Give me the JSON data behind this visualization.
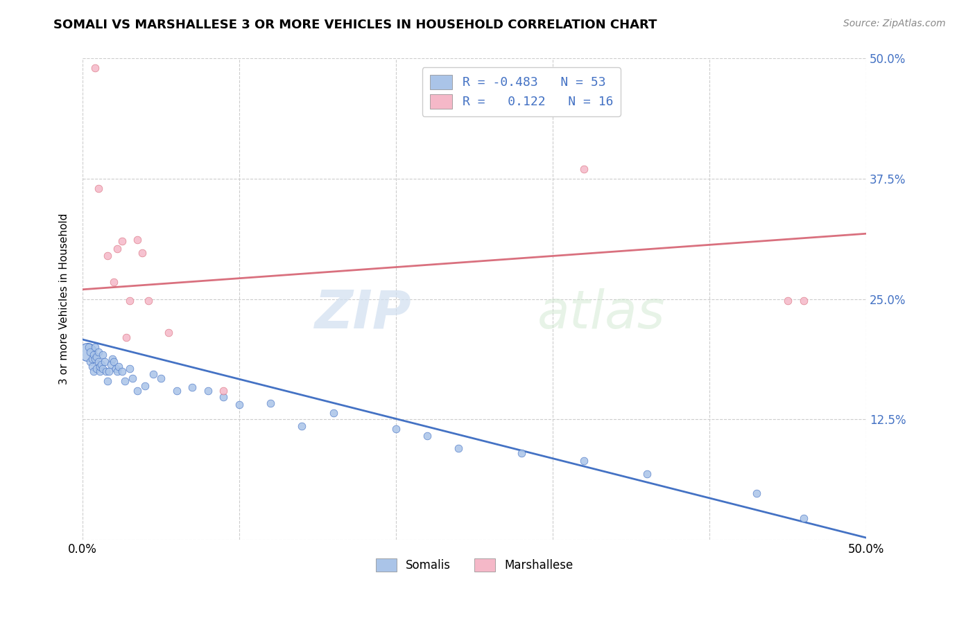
{
  "title": "SOMALI VS MARSHALLESE 3 OR MORE VEHICLES IN HOUSEHOLD CORRELATION CHART",
  "source": "Source: ZipAtlas.com",
  "ylabel": "3 or more Vehicles in Household",
  "watermark": "ZIPatlas",
  "xlim": [
    0.0,
    0.5
  ],
  "ylim": [
    0.0,
    0.5
  ],
  "xticks": [
    0.0,
    0.1,
    0.2,
    0.3,
    0.4,
    0.5
  ],
  "yticks": [
    0.0,
    0.125,
    0.25,
    0.375,
    0.5
  ],
  "ytick_labels_right": [
    "",
    "12.5%",
    "25.0%",
    "37.5%",
    "50.0%"
  ],
  "xtick_labels": [
    "0.0%",
    "",
    "",
    "",
    "",
    "50.0%"
  ],
  "legend_r_somali": "-0.483",
  "legend_n_somali": "53",
  "legend_r_marsh": "0.122",
  "legend_n_marsh": "16",
  "somali_color": "#aac4e8",
  "marshallese_color": "#f5b8c8",
  "somali_line_color": "#4472c4",
  "marshallese_line_color": "#d9707e",
  "background_color": "#ffffff",
  "grid_color": "#cccccc",
  "somali_x": [
    0.003,
    0.004,
    0.005,
    0.005,
    0.006,
    0.006,
    0.007,
    0.007,
    0.008,
    0.008,
    0.009,
    0.009,
    0.01,
    0.01,
    0.011,
    0.011,
    0.012,
    0.013,
    0.013,
    0.014,
    0.015,
    0.016,
    0.017,
    0.018,
    0.019,
    0.02,
    0.021,
    0.022,
    0.023,
    0.025,
    0.027,
    0.03,
    0.032,
    0.035,
    0.04,
    0.045,
    0.05,
    0.06,
    0.07,
    0.08,
    0.09,
    0.1,
    0.12,
    0.14,
    0.16,
    0.2,
    0.22,
    0.24,
    0.28,
    0.32,
    0.36,
    0.43,
    0.46
  ],
  "somali_y": [
    0.195,
    0.2,
    0.185,
    0.195,
    0.18,
    0.188,
    0.192,
    0.175,
    0.188,
    0.2,
    0.178,
    0.19,
    0.185,
    0.195,
    0.175,
    0.18,
    0.182,
    0.178,
    0.192,
    0.185,
    0.175,
    0.165,
    0.175,
    0.182,
    0.188,
    0.185,
    0.178,
    0.175,
    0.18,
    0.175,
    0.165,
    0.178,
    0.168,
    0.155,
    0.16,
    0.172,
    0.168,
    0.155,
    0.158,
    0.155,
    0.148,
    0.14,
    0.142,
    0.118,
    0.132,
    0.115,
    0.108,
    0.095,
    0.09,
    0.082,
    0.068,
    0.048,
    0.022
  ],
  "marshallese_x": [
    0.008,
    0.01,
    0.016,
    0.02,
    0.022,
    0.025,
    0.028,
    0.03,
    0.035,
    0.038,
    0.042,
    0.055,
    0.09,
    0.32,
    0.45,
    0.46
  ],
  "marshallese_y": [
    0.49,
    0.365,
    0.295,
    0.268,
    0.302,
    0.31,
    0.21,
    0.248,
    0.312,
    0.298,
    0.248,
    0.215,
    0.155,
    0.385,
    0.248,
    0.248
  ],
  "somali_scatter_size": 60,
  "marshallese_scatter_size": 60,
  "somali_line_x": [
    0.0,
    0.5
  ],
  "somali_line_y": [
    0.208,
    0.002
  ],
  "marshallese_line_x": [
    0.0,
    0.5
  ],
  "marshallese_line_y": [
    0.26,
    0.318
  ]
}
